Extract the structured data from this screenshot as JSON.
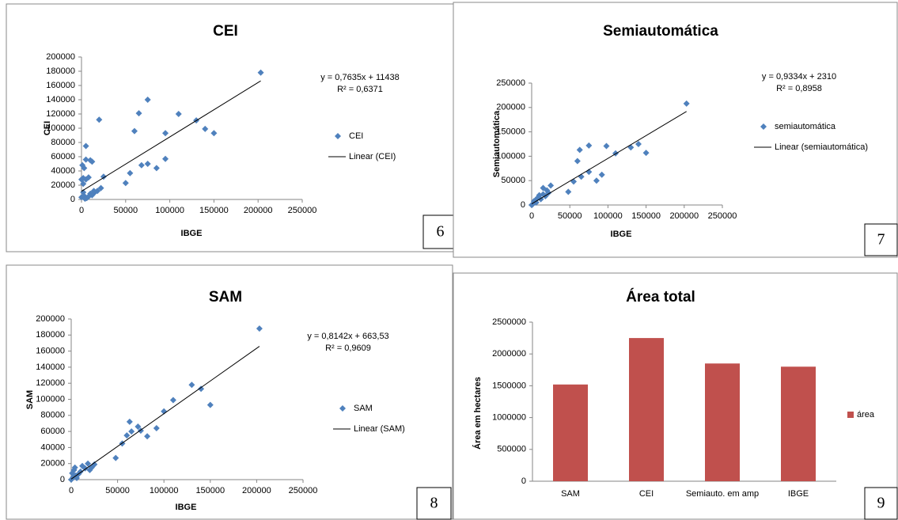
{
  "chart_data": [
    {
      "type": "scatter",
      "title": "CEI",
      "xlabel": "IBGE",
      "ylabel": "CEI",
      "panel_number": "6",
      "xlim": [
        0,
        250000
      ],
      "xticks": [
        0,
        50000,
        100000,
        150000,
        200000,
        250000
      ],
      "ylim": [
        0,
        200000
      ],
      "yticks": [
        0,
        20000,
        40000,
        60000,
        80000,
        100000,
        120000,
        140000,
        160000,
        180000,
        200000
      ],
      "series": [
        {
          "name": "CEI",
          "color": "#4f81bd",
          "x": [
            203000,
            75000,
            110000,
            65000,
            20000,
            60000,
            130000,
            140000,
            150000,
            95000,
            75000,
            68000,
            85000,
            95000,
            55000,
            50000,
            25000,
            22000,
            18000,
            15000,
            10000,
            5000,
            3000,
            5000,
            10000,
            12000,
            2000,
            5000,
            8000,
            0,
            2000,
            3000,
            4000,
            6000,
            8000,
            12000,
            1000,
            0,
            2000,
            14000
          ],
          "y": [
            178000,
            140000,
            120000,
            121000,
            112000,
            96000,
            111000,
            99000,
            93000,
            93000,
            50000,
            48000,
            44000,
            57000,
            37000,
            23000,
            32000,
            16000,
            12000,
            10000,
            8000,
            75000,
            44000,
            56000,
            55000,
            53000,
            30000,
            28000,
            31000,
            3000,
            10000,
            5000,
            1000,
            2000,
            4000,
            6000,
            48000,
            28000,
            22000,
            12000
          ]
        }
      ],
      "trendline": {
        "name": "Linear (CEI)",
        "color": "#000000",
        "slope": 0.7635,
        "intercept": 11438,
        "x": [
          0,
          203000
        ],
        "equation": "y = 0,7635x + 11438",
        "r2": "R² = 0,6371"
      }
    },
    {
      "type": "scatter",
      "title": "Semiautomática",
      "xlabel": "IBGE",
      "ylabel": "Semiautomática",
      "panel_number": "7",
      "xlim": [
        0,
        250000
      ],
      "xticks": [
        0,
        50000,
        100000,
        150000,
        200000,
        250000
      ],
      "ylim": [
        0,
        250000
      ],
      "yticks": [
        0,
        50000,
        100000,
        150000,
        200000,
        250000
      ],
      "series": [
        {
          "name": "semiautomática",
          "color": "#4f81bd",
          "x": [
            203000,
            140000,
            130000,
            150000,
            110000,
            75000,
            98000,
            63000,
            60000,
            75000,
            65000,
            92000,
            85000,
            55000,
            48000,
            25000,
            20000,
            15000,
            10000,
            5000,
            2000,
            0,
            8000,
            12000,
            18000,
            22000,
            3000,
            6000,
            1000,
            15000
          ],
          "y": [
            208000,
            125000,
            118000,
            107000,
            106000,
            122000,
            121000,
            113000,
            90000,
            68000,
            58000,
            62000,
            50000,
            48000,
            27000,
            40000,
            30000,
            35000,
            20000,
            10000,
            3000,
            0,
            15000,
            12000,
            18000,
            25000,
            8000,
            5000,
            1000,
            22000
          ]
        }
      ],
      "trendline": {
        "name": "Linear (semiautomática)",
        "color": "#000000",
        "slope": 0.9334,
        "intercept": 2310,
        "x": [
          0,
          203000
        ],
        "equation": "y = 0,9334x + 2310",
        "r2": "R² = 0,8958"
      }
    },
    {
      "type": "scatter",
      "title": "SAM",
      "xlabel": "IBGE",
      "ylabel": "SAM",
      "panel_number": "8",
      "xlim": [
        0,
        250000
      ],
      "xticks": [
        0,
        50000,
        100000,
        150000,
        200000,
        250000
      ],
      "ylim": [
        0,
        200000
      ],
      "yticks": [
        0,
        20000,
        40000,
        60000,
        80000,
        100000,
        120000,
        140000,
        160000,
        180000,
        200000
      ],
      "series": [
        {
          "name": "SAM",
          "color": "#4f81bd",
          "x": [
            203000,
            130000,
            140000,
            150000,
            110000,
            100000,
            92000,
            75000,
            72000,
            63000,
            65000,
            60000,
            55000,
            82000,
            48000,
            25000,
            22000,
            18000,
            15000,
            10000,
            8000,
            5000,
            3000,
            2000,
            0,
            12000,
            6000,
            1000,
            4000,
            20000
          ],
          "y": [
            188000,
            118000,
            113000,
            93000,
            99000,
            85000,
            64000,
            61000,
            66000,
            72000,
            60000,
            55000,
            45000,
            54000,
            27000,
            19000,
            15000,
            20000,
            14000,
            10000,
            7000,
            5000,
            12000,
            3000,
            0,
            17000,
            2000,
            8000,
            15000,
            12000
          ]
        }
      ],
      "trendline": {
        "name": "Linear (SAM)",
        "color": "#000000",
        "slope": 0.8142,
        "intercept": 663.53,
        "x": [
          0,
          203000
        ],
        "equation": "y = 0,8142x + 663,53",
        "r2": "R² = 0,9609"
      }
    },
    {
      "type": "bar",
      "title": "Área total",
      "ylabel": "Área em hectares",
      "panel_number": "9",
      "categories": [
        "SAM",
        "CEI",
        "Semiauto. em amp",
        "IBGE"
      ],
      "series": [
        {
          "name": "área",
          "color": "#c0504d",
          "values": [
            1520000,
            2250000,
            1850000,
            1800000
          ]
        }
      ],
      "ylim": [
        0,
        2500000
      ],
      "yticks": [
        0,
        500000,
        1000000,
        1500000,
        2000000,
        2500000
      ]
    }
  ]
}
